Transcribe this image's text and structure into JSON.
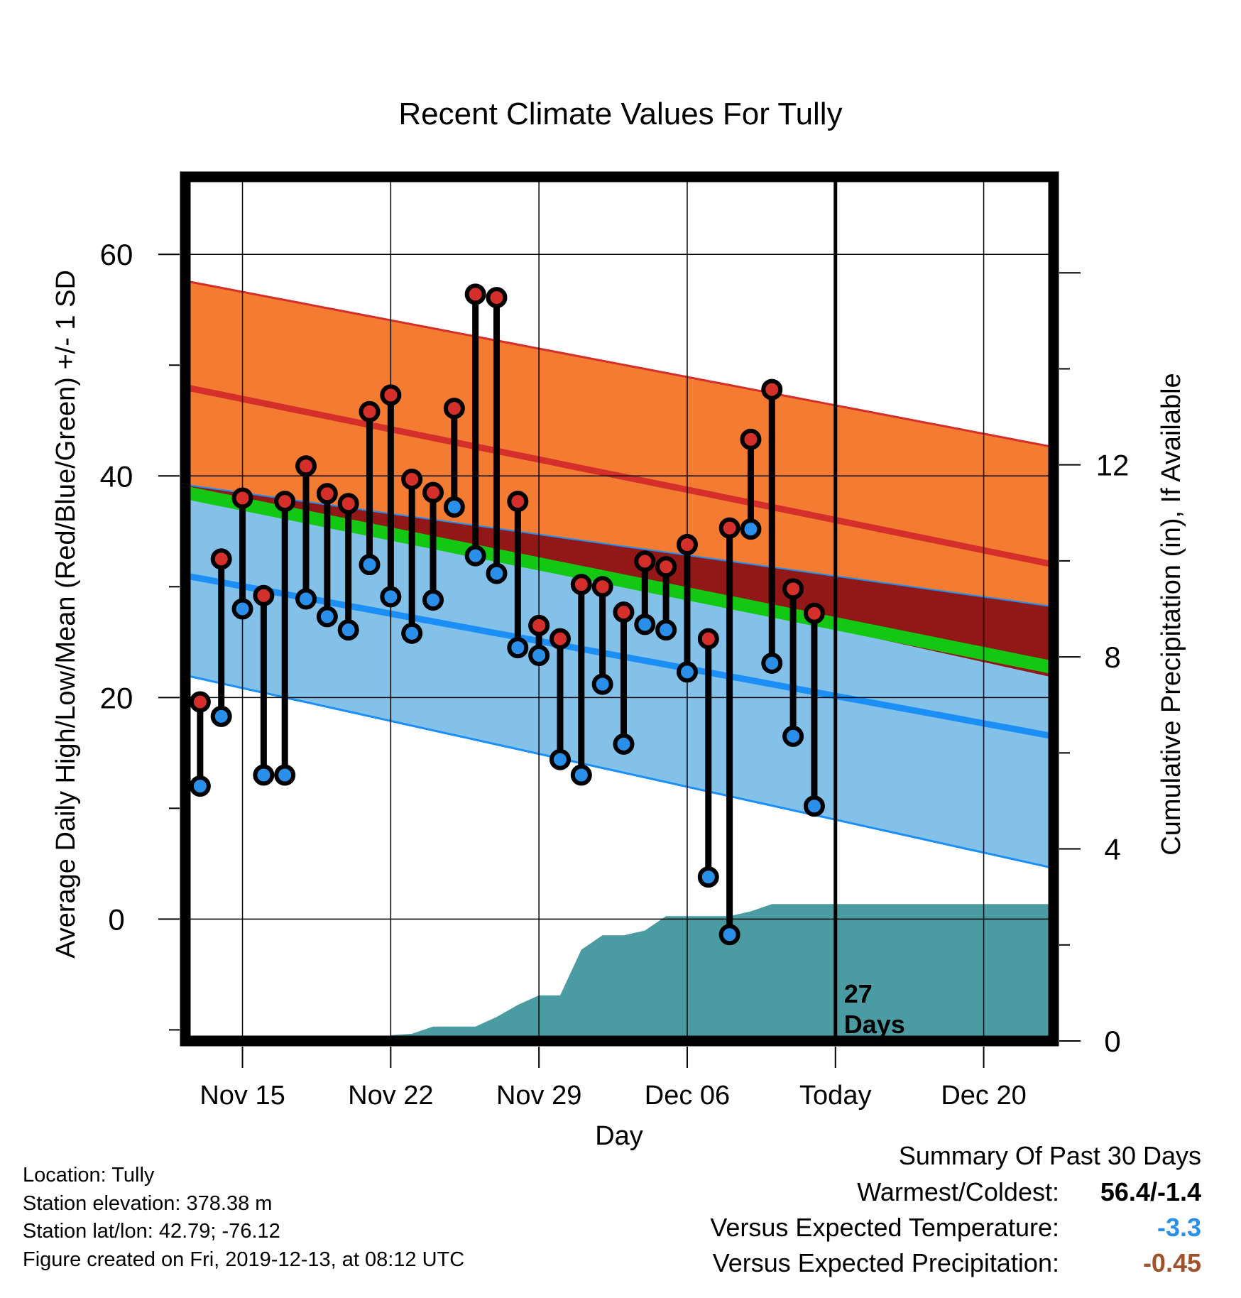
{
  "chart_data": {
    "type": "line",
    "title": "Recent Climate Values For Tully",
    "xlabel": "Day",
    "ylabel": "Average Daily High/Low/Mean (Red/Blue/Green) +/- 1 SD",
    "y2label": "Cumulative Precipitation (in), If Available",
    "ylim": [
      -11,
      67
    ],
    "y_ticks": [
      0,
      20,
      40,
      60
    ],
    "y2lim": [
      0,
      18
    ],
    "y2_ticks": [
      0,
      4,
      8,
      12
    ],
    "x_range": [
      0.3,
      41.3
    ],
    "x_ticks": [
      {
        "x": 3,
        "label": "Nov 15"
      },
      {
        "x": 10,
        "label": "Nov 22"
      },
      {
        "x": 17,
        "label": "Nov 29"
      },
      {
        "x": 24,
        "label": "Dec 06"
      },
      {
        "x": 31,
        "label": "Today"
      },
      {
        "x": 38,
        "label": "Dec 20"
      }
    ],
    "today_x": 31,
    "today_annotation": [
      "27",
      "Days"
    ],
    "normals": {
      "x_start": 0.3,
      "x_end": 41.3,
      "high_mean": [
        48.0,
        32.0
      ],
      "high_plus_sd": [
        57.6,
        42.6
      ],
      "low_mean": [
        31.0,
        16.5
      ],
      "low_minus_sd": [
        22.0,
        4.6
      ],
      "mean_avg": [
        38.5,
        22.7
      ],
      "high_minus_sd": [
        39.2,
        28.2
      ],
      "low_plus_sd": [
        39.1,
        21.8
      ]
    },
    "series": [
      {
        "name": "Daily High",
        "x": [
          1,
          2,
          3,
          4,
          5,
          6,
          7,
          8,
          9,
          10,
          11,
          12,
          13,
          14,
          15,
          16,
          17,
          18,
          19,
          20,
          21,
          22,
          23,
          24,
          25,
          26,
          27,
          28,
          29,
          30
        ],
        "values": [
          19.6,
          32.5,
          38.0,
          29.2,
          37.7,
          40.9,
          38.4,
          37.5,
          45.8,
          47.3,
          39.7,
          38.5,
          46.1,
          56.4,
          56.1,
          37.7,
          26.5,
          25.3,
          30.2,
          30.0,
          27.7,
          32.3,
          31.8,
          33.8,
          25.3,
          35.3,
          43.3,
          47.8,
          29.8,
          27.6
        ]
      },
      {
        "name": "Daily Low",
        "x": [
          1,
          2,
          3,
          4,
          5,
          6,
          7,
          8,
          9,
          10,
          11,
          12,
          13,
          14,
          15,
          16,
          17,
          18,
          19,
          20,
          21,
          22,
          23,
          24,
          25,
          26,
          27,
          28,
          29,
          30
        ],
        "values": [
          12.0,
          18.3,
          28.0,
          13.0,
          13.0,
          28.9,
          27.3,
          26.1,
          32.0,
          29.1,
          25.8,
          28.8,
          37.2,
          32.8,
          31.2,
          24.5,
          23.8,
          14.4,
          13.0,
          21.2,
          15.8,
          26.6,
          26.1,
          22.3,
          3.8,
          -1.4,
          35.2,
          23.1,
          16.5,
          10.2
        ]
      },
      {
        "name": "Cumulative Precipitation",
        "x": [
          0.3,
          9.5,
          10,
          11,
          12,
          13,
          14,
          15,
          16,
          17,
          18,
          19,
          20,
          21,
          22,
          23,
          24,
          25,
          26,
          27,
          28,
          29,
          30,
          41.3
        ],
        "values": [
          0,
          0,
          0.12,
          0.15,
          0.3,
          0.3,
          0.3,
          0.5,
          0.75,
          0.95,
          0.95,
          1.9,
          2.2,
          2.2,
          2.3,
          2.6,
          2.6,
          2.6,
          2.6,
          2.7,
          2.85,
          2.85,
          2.85,
          2.85
        ]
      }
    ],
    "colors": {
      "high_band": "#f47b32",
      "high_line": "#d42f2a",
      "overlap_band": "#921818",
      "mean_band": "#12c812",
      "low_band": "#84c1e8",
      "low_line": "#1b8ff5",
      "precip": "#4b9ca2",
      "high_marker": "#d42f2a",
      "low_marker": "#2a8fe8"
    },
    "legend": "none",
    "grid": true
  },
  "footer": {
    "location": "Location: Tully",
    "elevation": "Station elevation: 378.38 m",
    "latlon": "Station lat/lon: 42.79; -76.12",
    "created": "Figure created on Fri, 2019-12-13, at 08:12 UTC"
  },
  "summary": {
    "title": "Summary Of Past 30 Days",
    "warm_cold_label": "Warmest/Coldest:",
    "warm_cold_value": "56.4/-1.4",
    "temp_label": "Versus Expected Temperature:",
    "temp_value": "-3.3",
    "temp_color": "#2a8fe8",
    "precip_label": "Versus Expected Precipitation:",
    "precip_value": "-0.45",
    "precip_color": "#a0522d"
  }
}
